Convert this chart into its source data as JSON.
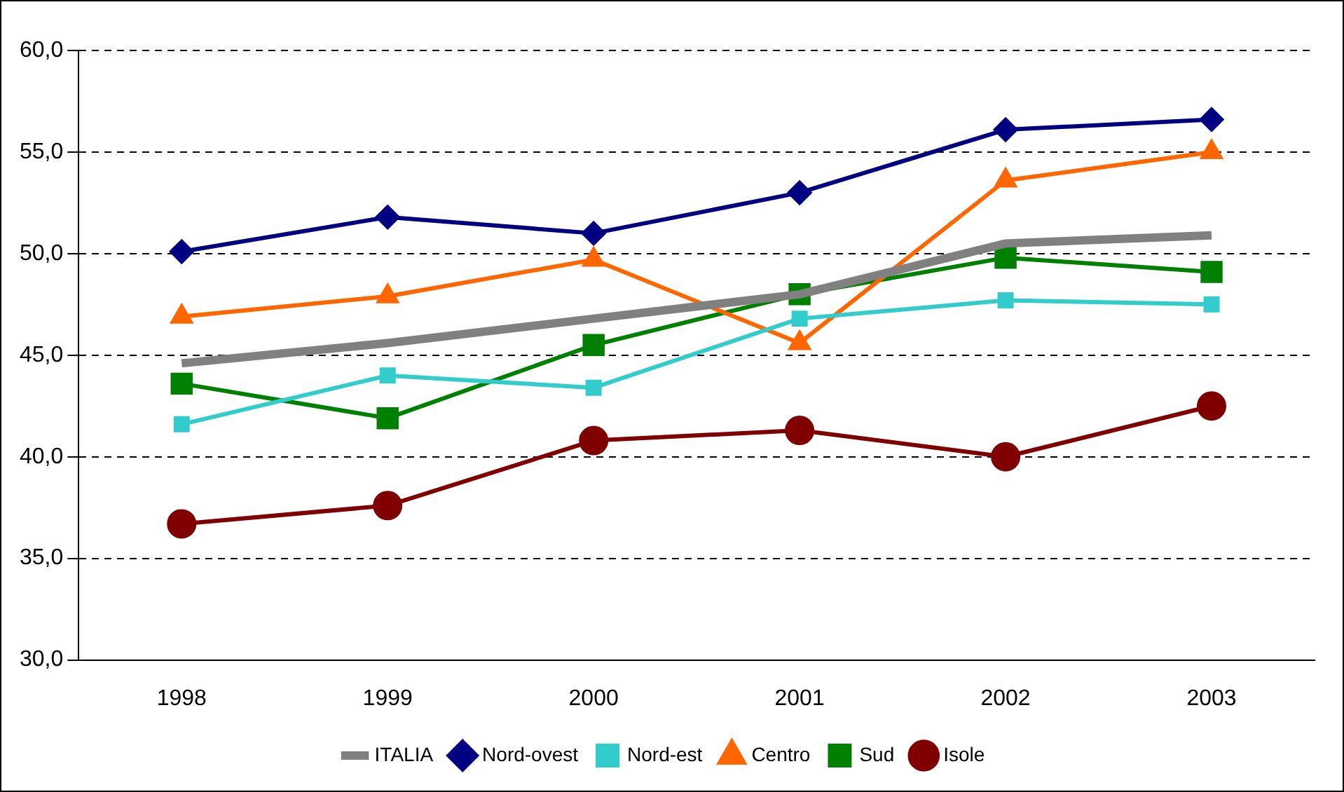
{
  "chart_data": {
    "type": "line",
    "categories": [
      "1998",
      "1999",
      "2000",
      "2001",
      "2002",
      "2003"
    ],
    "series": [
      {
        "name": "Nord-ovest",
        "color": "#000080",
        "marker": "diamond",
        "values": [
          50.1,
          51.8,
          51.0,
          53.0,
          56.1,
          56.6
        ]
      },
      {
        "name": "Nord-est",
        "color": "#33cccc",
        "marker": "square",
        "values": [
          41.6,
          44.0,
          43.4,
          46.8,
          47.7,
          47.5
        ]
      },
      {
        "name": "Centro",
        "color": "#ff6600",
        "marker": "triangle",
        "values": [
          46.9,
          47.9,
          49.7,
          45.6,
          53.6,
          55.0
        ]
      },
      {
        "name": "Sud",
        "color": "#008000",
        "marker": "square",
        "values": [
          43.6,
          41.9,
          45.5,
          48.0,
          49.8,
          49.1
        ]
      },
      {
        "name": "Isole",
        "color": "#800000",
        "marker": "circle",
        "values": [
          36.7,
          37.6,
          40.8,
          41.3,
          40.0,
          42.5
        ]
      },
      {
        "name": "ITALIA",
        "color": "#808080",
        "marker": "none",
        "values": [
          44.6,
          45.6,
          46.8,
          48.0,
          50.5,
          50.9
        ]
      }
    ],
    "ylim": [
      30,
      60
    ],
    "yticks": [
      {
        "value": 30,
        "label": "30,0"
      },
      {
        "value": 35,
        "label": "35,0"
      },
      {
        "value": 40,
        "label": "40,0"
      },
      {
        "value": 45,
        "label": "45,0"
      },
      {
        "value": 50,
        "label": "50,0"
      },
      {
        "value": 55,
        "label": "55,0"
      },
      {
        "value": 60,
        "label": "60,0"
      }
    ],
    "grid": "y",
    "line_style": "solid",
    "legend": "bottom"
  }
}
